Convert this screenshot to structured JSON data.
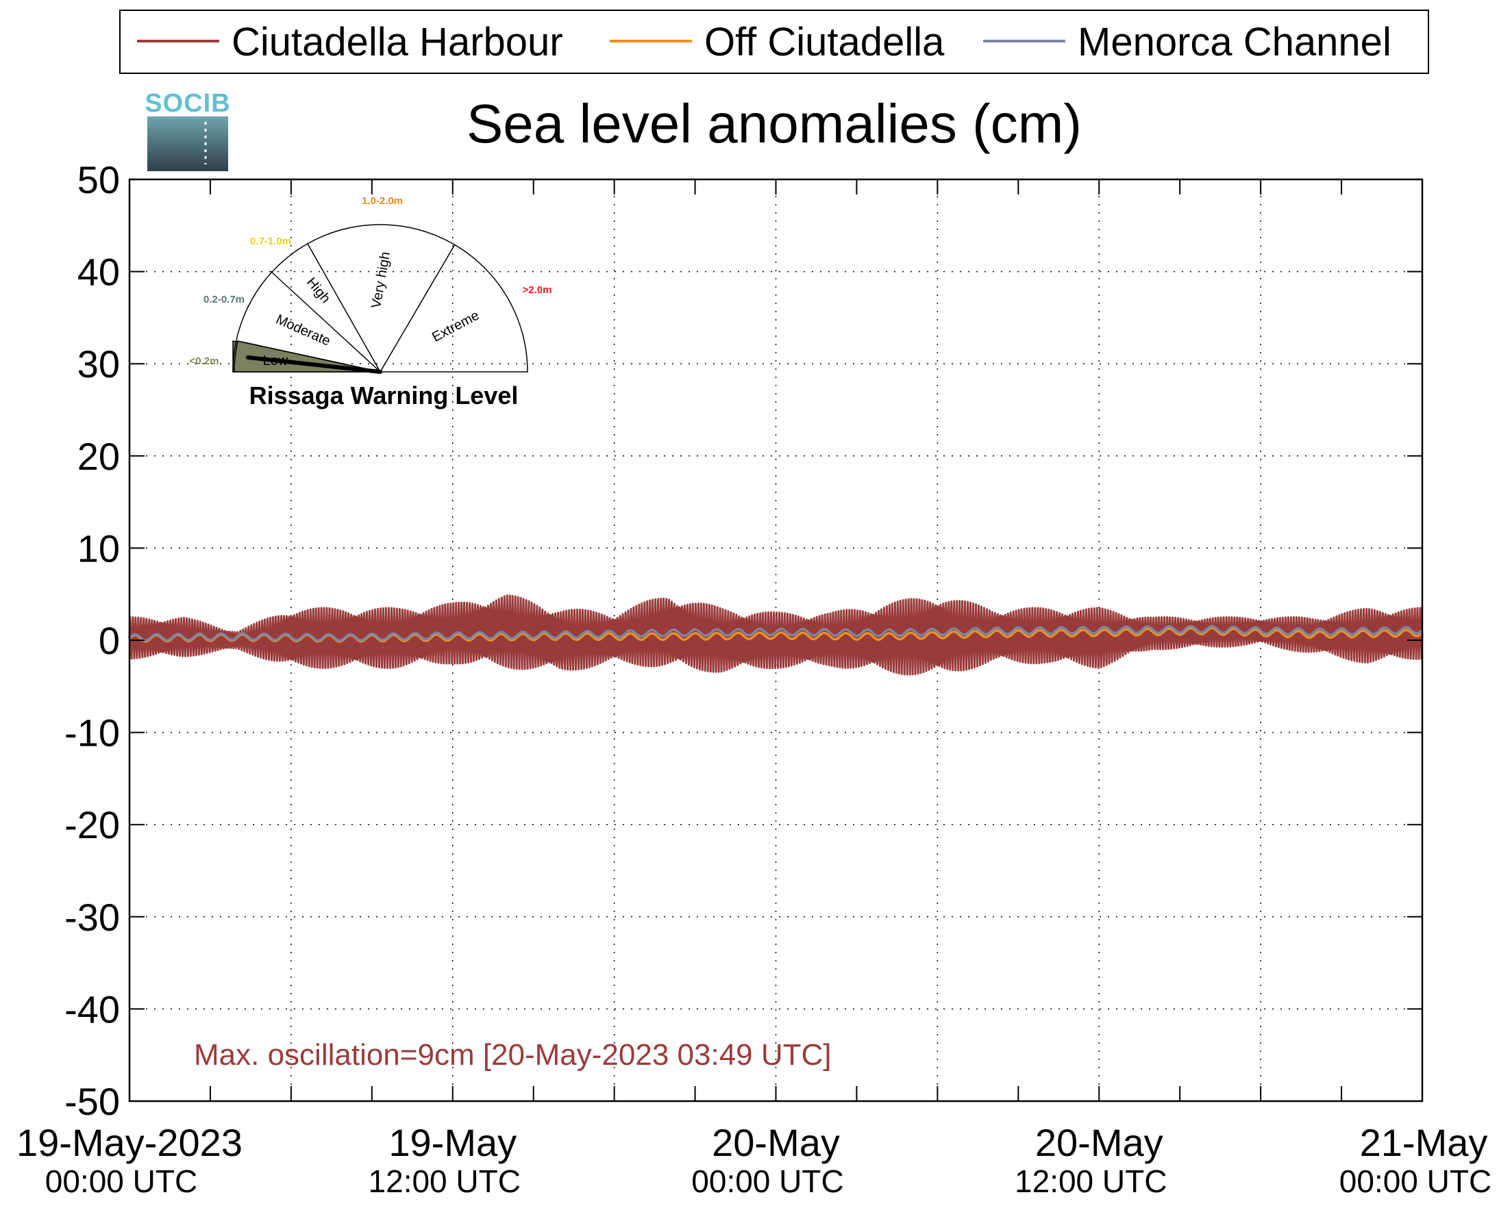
{
  "legend": {
    "items": [
      {
        "label": "Ciutadella Harbour",
        "color": "#9a3b3b"
      },
      {
        "label": "Off Ciutadella",
        "color": "#e8901e"
      },
      {
        "label": "Menorca Channel",
        "color": "#7a86a8"
      }
    ]
  },
  "logo": {
    "text": "SOCIB"
  },
  "gauge": {
    "title": "Rissaga Warning Level",
    "levels": [
      {
        "name": "Low",
        "range": "<0.2m",
        "range_color": "#7a8a55",
        "fill": "#7b8060"
      },
      {
        "name": "Moderate",
        "range": "0.2-0.7m",
        "range_color": "#5a7575",
        "fill": "#ffffff"
      },
      {
        "name": "High",
        "range": "0.7-1.0m",
        "range_color": "#e6d21e",
        "fill": "#ffffff"
      },
      {
        "name": "Very high",
        "range": "1.0-2.0m",
        "range_color": "#e88a1e",
        "fill": "#ffffff"
      },
      {
        "name": "Extreme",
        "range": ">2.0m",
        "range_color": "#e02020",
        "fill": "#ffffff"
      }
    ],
    "active_level": "Low"
  },
  "annotation": {
    "text": "Max. oscillation=9cm [20-May-2023 03:49 UTC]",
    "color": "#9a3b3b"
  },
  "chart_data": {
    "type": "line",
    "title": "Sea level anomalies (cm)",
    "ylim": [
      -50,
      50
    ],
    "yticks": [
      50,
      40,
      30,
      20,
      10,
      0,
      -10,
      -20,
      -30,
      -40,
      -50
    ],
    "xlim": [
      "2023-05-19T00:00",
      "2023-05-21T00:00"
    ],
    "xticks": [
      {
        "line1": "19-May-2023",
        "line2": "00:00 UTC"
      },
      {
        "line1": "19-May",
        "line2": "12:00 UTC"
      },
      {
        "line1": "20-May",
        "line2": "00:00 UTC"
      },
      {
        "line1": "20-May",
        "line2": "12:00 UTC"
      },
      {
        "line1": "21-May",
        "line2": "00:00 UTC"
      }
    ],
    "grid": true,
    "legend_position": "top",
    "series": [
      {
        "name": "Ciutadella Harbour",
        "color": "#9a3b3b",
        "x_hours": [
          0,
          2,
          4,
          6,
          8,
          10,
          12,
          14,
          16,
          18,
          20,
          22,
          24,
          26,
          28,
          30,
          32,
          34,
          36,
          38,
          40,
          42,
          44,
          46,
          48
        ],
        "envelope_max": [
          2.5,
          2.5,
          1.0,
          3.5,
          3.5,
          3.5,
          4.0,
          5.0,
          3.5,
          3.0,
          5.0,
          3.5,
          3.0,
          3.0,
          4.0,
          5.0,
          3.5,
          3.5,
          3.5,
          2.5,
          2.5,
          2.5,
          2.5,
          3.5,
          3.5
        ],
        "envelope_min": [
          -2.0,
          -1.8,
          -1.0,
          -3.0,
          -3.0,
          -3.0,
          -2.5,
          -3.0,
          -3.5,
          -2.5,
          -3.0,
          -3.5,
          -3.0,
          -2.8,
          -3.5,
          -4.0,
          -2.5,
          -2.5,
          -3.0,
          -1.0,
          -0.8,
          -0.5,
          -1.5,
          -2.5,
          -2.0
        ]
      },
      {
        "name": "Off Ciutadella",
        "color": "#e8901e",
        "x_hours": [
          0,
          4,
          8,
          12,
          16,
          20,
          24,
          28,
          32,
          36,
          40,
          44,
          48
        ],
        "values": [
          0.2,
          0.3,
          0.2,
          0.3,
          0.4,
          0.4,
          0.5,
          0.4,
          0.7,
          0.8,
          1.0,
          0.6,
          0.8
        ]
      },
      {
        "name": "Menorca Channel",
        "color": "#7a86a8",
        "x_hours": [
          0,
          4,
          8,
          12,
          16,
          20,
          24,
          28,
          32,
          36,
          40,
          44,
          48
        ],
        "values": [
          0.3,
          0.4,
          0.3,
          0.5,
          0.6,
          0.8,
          0.9,
          0.8,
          1.0,
          1.1,
          1.2,
          0.9,
          1.1
        ]
      }
    ]
  }
}
